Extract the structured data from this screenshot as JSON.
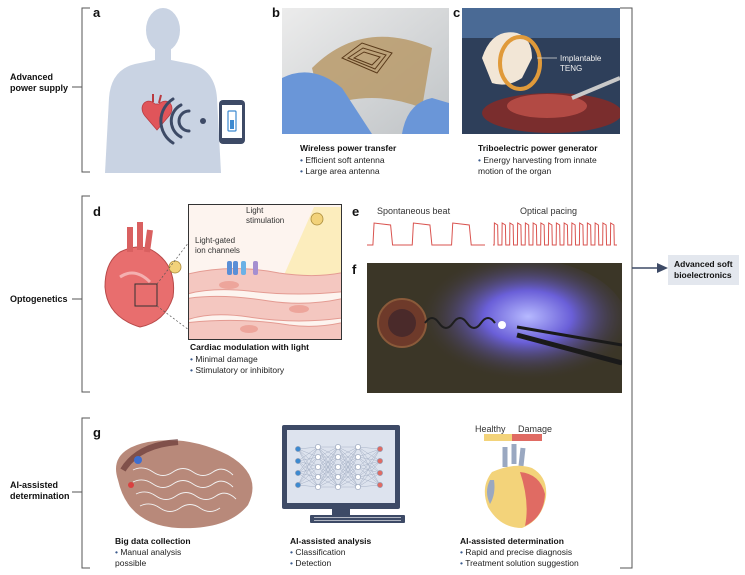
{
  "sections": {
    "power": "Advanced\npower supply",
    "opto": "Optogenetics",
    "ai": "AI-assisted\ndetermination"
  },
  "panels": {
    "a": "a",
    "b": "b",
    "c": "c",
    "d": "d",
    "e": "e",
    "f": "f",
    "g": "g"
  },
  "panel_b": {
    "title": "Wireless power transfer",
    "bullets": [
      "Efficient soft antenna",
      "Large area antenna"
    ]
  },
  "panel_c": {
    "label": "Implantable\nTENG",
    "title": "Triboelectric power generator",
    "bullets": [
      "Energy harvesting from innate",
      "motion of the organ"
    ]
  },
  "panel_d": {
    "light_label": "Light\nstimulation",
    "channel_label": "Light-gated\nion channels",
    "title": "Cardiac modulation with light",
    "bullets": [
      "Minimal damage",
      "Stimulatory or inhibitory"
    ]
  },
  "panel_e": {
    "left": "Spontaneous beat",
    "right": "Optical pacing"
  },
  "panel_g": {
    "big_title": "Big data collection",
    "big_bullets": [
      "Manual analysis",
      "possible"
    ],
    "ai_title": "AI-assisted analysis",
    "ai_bullets": [
      "Classification",
      "Detection"
    ],
    "det_title": "AI-assisted determination",
    "det_bullets": [
      "Rapid and precise diagnosis",
      "Treatment solution suggestion"
    ],
    "healthy": "Healthy",
    "damage": "Damage"
  },
  "result": "Advanced soft\nbioelectronics",
  "colors": {
    "heart_red": "#e0555a",
    "slate": "#3d4a66",
    "pale_blue": "#c9d3e3",
    "healthy_yellow": "#f3d37a",
    "damage_red": "#e06b63"
  }
}
